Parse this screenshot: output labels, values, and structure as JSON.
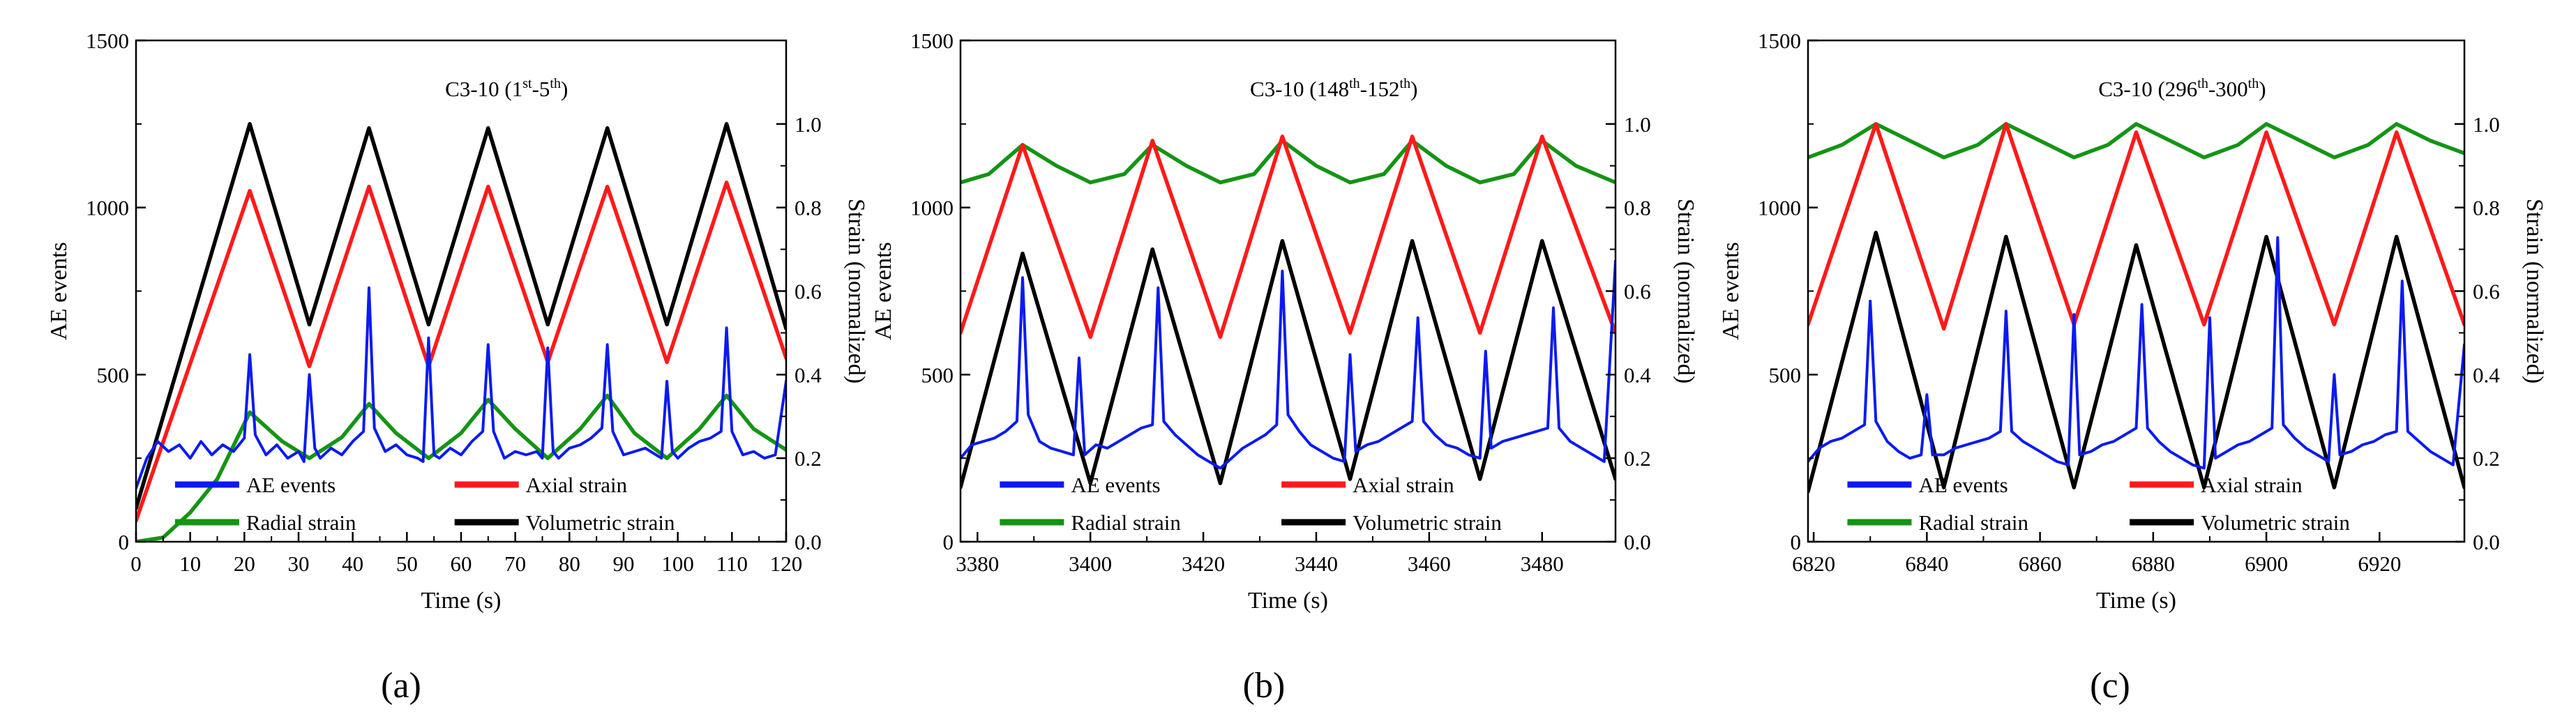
{
  "colors": {
    "ae": "#0b1bf0",
    "axial": "#ff1a1a",
    "radial": "#149414",
    "volumetric": "#000000"
  },
  "legend": [
    "AE events",
    "Axial strain",
    "Radial strain",
    "Volumetric strain"
  ],
  "chart_data": [
    {
      "type": "line",
      "panel_label": "(a)",
      "title_html": "C3-10 (1<tspan baseline-shift='super' font-size='60%'>st</tspan>-5<tspan baseline-shift='super' font-size='60%'>th</tspan>)",
      "title_main": "C3-10 (1",
      "title_parts": [
        "C3-10 (1",
        "st",
        "-5",
        "th",
        ")"
      ],
      "xlabel": "Time (s)",
      "ylabel": "AE events",
      "y2label": "Strain (normalized)",
      "xlim": [
        0,
        120
      ],
      "xticks": [
        0,
        10,
        20,
        30,
        40,
        50,
        60,
        70,
        80,
        90,
        100,
        110,
        120
      ],
      "ylim": [
        0,
        1500
      ],
      "yticks": [
        0,
        500,
        1000,
        1500
      ],
      "y2lim": [
        0,
        1.2
      ],
      "y2ticks": [
        0.0,
        0.2,
        0.4,
        0.6,
        0.8,
        1.0
      ],
      "legend_position": "bottom-center",
      "series": [
        {
          "name": "Volumetric strain",
          "color_key": "volumetric",
          "axis": "right",
          "x": [
            0,
            21,
            32,
            43,
            54,
            65,
            76,
            87,
            98,
            109,
            120
          ],
          "y": [
            0.08,
            1.0,
            0.52,
            0.99,
            0.52,
            0.99,
            0.52,
            0.99,
            0.52,
            1.0,
            0.51
          ]
        },
        {
          "name": "Axial strain",
          "color_key": "axial",
          "axis": "right",
          "x": [
            0,
            21,
            32,
            43,
            54,
            65,
            76,
            87,
            98,
            109,
            120
          ],
          "y": [
            0.05,
            0.84,
            0.42,
            0.85,
            0.42,
            0.85,
            0.43,
            0.85,
            0.43,
            0.86,
            0.44
          ]
        },
        {
          "name": "Radial strain",
          "color_key": "radial",
          "axis": "right",
          "x": [
            0,
            5,
            10,
            15,
            21,
            27,
            32,
            38,
            43,
            48,
            54,
            60,
            65,
            70,
            76,
            82,
            87,
            92,
            98,
            104,
            109,
            114,
            120
          ],
          "y": [
            0.0,
            0.01,
            0.07,
            0.15,
            0.31,
            0.24,
            0.2,
            0.25,
            0.33,
            0.26,
            0.2,
            0.26,
            0.34,
            0.27,
            0.2,
            0.27,
            0.35,
            0.26,
            0.2,
            0.27,
            0.35,
            0.27,
            0.22
          ]
        },
        {
          "name": "AE events",
          "color_key": "ae",
          "axis": "left",
          "x": [
            0,
            2,
            4,
            6,
            8,
            10,
            12,
            14,
            16,
            18,
            20,
            21,
            22,
            24,
            26,
            28,
            30,
            31,
            32,
            33,
            34,
            36,
            38,
            40,
            42,
            43,
            44,
            46,
            48,
            50,
            52,
            53,
            54,
            55,
            56,
            58,
            60,
            62,
            64,
            65,
            66,
            68,
            70,
            72,
            74,
            75,
            76,
            77,
            78,
            80,
            82,
            84,
            86,
            87,
            88,
            90,
            92,
            94,
            96,
            97,
            98,
            99,
            100,
            102,
            104,
            106,
            108,
            109,
            110,
            112,
            114,
            116,
            118,
            120
          ],
          "y": [
            160,
            250,
            300,
            270,
            290,
            250,
            300,
            260,
            290,
            270,
            310,
            560,
            320,
            260,
            290,
            250,
            270,
            240,
            500,
            280,
            250,
            280,
            260,
            300,
            330,
            760,
            340,
            270,
            290,
            260,
            250,
            240,
            610,
            260,
            250,
            280,
            260,
            300,
            330,
            590,
            330,
            250,
            270,
            260,
            270,
            250,
            580,
            270,
            250,
            280,
            290,
            310,
            340,
            590,
            330,
            260,
            270,
            280,
            260,
            250,
            480,
            270,
            250,
            280,
            300,
            310,
            330,
            640,
            330,
            260,
            270,
            250,
            260,
            480
          ]
        }
      ]
    },
    {
      "type": "line",
      "panel_label": "(b)",
      "title_parts": [
        "C3-10 (148",
        "th",
        "-152",
        "th",
        ")"
      ],
      "xlabel": "Time (s)",
      "ylabel": "AE events",
      "y2label": "Strain (normalized)",
      "xlim": [
        3377,
        3493
      ],
      "xticks": [
        3380,
        3400,
        3420,
        3440,
        3460,
        3480
      ],
      "ylim": [
        0,
        1500
      ],
      "yticks": [
        0,
        500,
        1000,
        1500
      ],
      "y2lim": [
        0,
        1.2
      ],
      "y2ticks": [
        0.0,
        0.2,
        0.4,
        0.6,
        0.8,
        1.0
      ],
      "legend_position": "bottom-center",
      "series": [
        {
          "name": "Radial strain",
          "color_key": "radial",
          "axis": "right",
          "x": [
            3377,
            3382,
            3388,
            3394,
            3400,
            3406,
            3411,
            3417,
            3423,
            3429,
            3434,
            3440,
            3446,
            3452,
            3457,
            3463,
            3469,
            3475,
            3480,
            3486,
            3493
          ],
          "y": [
            0.86,
            0.88,
            0.95,
            0.9,
            0.86,
            0.88,
            0.95,
            0.9,
            0.86,
            0.88,
            0.96,
            0.9,
            0.86,
            0.88,
            0.96,
            0.9,
            0.86,
            0.88,
            0.96,
            0.9,
            0.86
          ]
        },
        {
          "name": "Axial strain",
          "color_key": "axial",
          "axis": "right",
          "x": [
            3377,
            3388,
            3400,
            3411,
            3423,
            3434,
            3446,
            3457,
            3469,
            3480,
            3493
          ],
          "y": [
            0.5,
            0.95,
            0.49,
            0.96,
            0.49,
            0.97,
            0.5,
            0.97,
            0.5,
            0.97,
            0.5
          ]
        },
        {
          "name": "Volumetric strain",
          "color_key": "volumetric",
          "axis": "right",
          "x": [
            3377,
            3388,
            3400,
            3411,
            3423,
            3434,
            3446,
            3457,
            3469,
            3480,
            3493
          ],
          "y": [
            0.13,
            0.69,
            0.14,
            0.7,
            0.14,
            0.72,
            0.15,
            0.72,
            0.15,
            0.72,
            0.15
          ]
        },
        {
          "name": "AE events",
          "color_key": "ae",
          "axis": "left",
          "x": [
            3377,
            3379,
            3381,
            3383,
            3385,
            3387,
            3388,
            3389,
            3391,
            3393,
            3395,
            3397,
            3398,
            3399,
            3401,
            3403,
            3405,
            3407,
            3409,
            3411,
            3412,
            3413,
            3415,
            3417,
            3419,
            3421,
            3423,
            3425,
            3427,
            3429,
            3431,
            3433,
            3434,
            3435,
            3437,
            3439,
            3441,
            3443,
            3445,
            3446,
            3447,
            3449,
            3451,
            3453,
            3455,
            3457,
            3458,
            3459,
            3461,
            3463,
            3465,
            3467,
            3469,
            3470,
            3471,
            3473,
            3475,
            3477,
            3479,
            3481,
            3482,
            3483,
            3485,
            3487,
            3489,
            3491,
            3493
          ],
          "y": [
            250,
            290,
            300,
            310,
            330,
            360,
            790,
            380,
            300,
            280,
            270,
            260,
            550,
            260,
            290,
            280,
            300,
            320,
            340,
            350,
            760,
            360,
            320,
            290,
            260,
            240,
            220,
            250,
            280,
            300,
            320,
            350,
            810,
            380,
            330,
            290,
            270,
            250,
            240,
            560,
            270,
            290,
            300,
            320,
            340,
            360,
            670,
            360,
            320,
            290,
            280,
            260,
            250,
            570,
            280,
            300,
            310,
            320,
            330,
            340,
            700,
            340,
            300,
            280,
            260,
            240,
            840
          ]
        }
      ]
    },
    {
      "type": "line",
      "panel_label": "(c)",
      "title_parts": [
        "C3-10 (296",
        "th",
        "-300",
        "th",
        ")"
      ],
      "xlabel": "Time (s)",
      "ylabel": "AE events",
      "y2label": "Strain (normalized)",
      "xlim": [
        6819,
        6935
      ],
      "xticks": [
        6820,
        6840,
        6860,
        6880,
        6900,
        6920
      ],
      "ylim": [
        0,
        1500
      ],
      "yticks": [
        0,
        500,
        1000,
        1500
      ],
      "y2lim": [
        0,
        1.2
      ],
      "y2ticks": [
        0.0,
        0.2,
        0.4,
        0.6,
        0.8,
        1.0
      ],
      "legend_position": "bottom-center",
      "series": [
        {
          "name": "Radial strain",
          "color_key": "radial",
          "axis": "right",
          "x": [
            6819,
            6825,
            6831,
            6837,
            6843,
            6849,
            6854,
            6860,
            6866,
            6872,
            6877,
            6883,
            6889,
            6895,
            6900,
            6906,
            6912,
            6918,
            6923,
            6929,
            6935
          ],
          "y": [
            0.92,
            0.95,
            1.0,
            0.96,
            0.92,
            0.95,
            1.0,
            0.96,
            0.92,
            0.95,
            1.0,
            0.96,
            0.92,
            0.95,
            1.0,
            0.96,
            0.92,
            0.95,
            1.0,
            0.96,
            0.93
          ]
        },
        {
          "name": "Axial strain",
          "color_key": "axial",
          "axis": "right",
          "x": [
            6819,
            6831,
            6843,
            6854,
            6866,
            6877,
            6889,
            6900,
            6912,
            6923,
            6935
          ],
          "y": [
            0.52,
            1.0,
            0.51,
            1.0,
            0.52,
            0.98,
            0.52,
            0.98,
            0.52,
            0.98,
            0.52
          ]
        },
        {
          "name": "Volumetric strain",
          "color_key": "volumetric",
          "axis": "right",
          "x": [
            6819,
            6831,
            6843,
            6854,
            6866,
            6877,
            6889,
            6900,
            6912,
            6923,
            6935
          ],
          "y": [
            0.12,
            0.74,
            0.13,
            0.73,
            0.13,
            0.71,
            0.13,
            0.73,
            0.13,
            0.73,
            0.13
          ]
        },
        {
          "name": "AE events",
          "color_key": "ae",
          "axis": "left",
          "x": [
            6819,
            6821,
            6823,
            6825,
            6827,
            6829,
            6830,
            6831,
            6833,
            6835,
            6837,
            6839,
            6840,
            6841,
            6843,
            6845,
            6847,
            6849,
            6851,
            6853,
            6854,
            6855,
            6857,
            6859,
            6861,
            6863,
            6865,
            6866,
            6867,
            6869,
            6871,
            6873,
            6875,
            6877,
            6878,
            6879,
            6881,
            6883,
            6885,
            6887,
            6889,
            6890,
            6891,
            6893,
            6895,
            6897,
            6899,
            6901,
            6902,
            6903,
            6905,
            6907,
            6909,
            6911,
            6912,
            6913,
            6915,
            6917,
            6919,
            6921,
            6923,
            6924,
            6925,
            6927,
            6929,
            6931,
            6933,
            6935
          ],
          "y": [
            240,
            280,
            300,
            310,
            330,
            350,
            720,
            360,
            300,
            270,
            250,
            260,
            440,
            260,
            260,
            280,
            290,
            300,
            310,
            330,
            690,
            330,
            300,
            280,
            260,
            240,
            230,
            680,
            260,
            270,
            290,
            300,
            320,
            340,
            710,
            340,
            300,
            270,
            250,
            230,
            220,
            670,
            250,
            270,
            290,
            300,
            320,
            340,
            910,
            350,
            310,
            280,
            260,
            240,
            500,
            260,
            270,
            290,
            300,
            320,
            330,
            780,
            330,
            300,
            270,
            250,
            230,
            590
          ]
        }
      ]
    }
  ]
}
